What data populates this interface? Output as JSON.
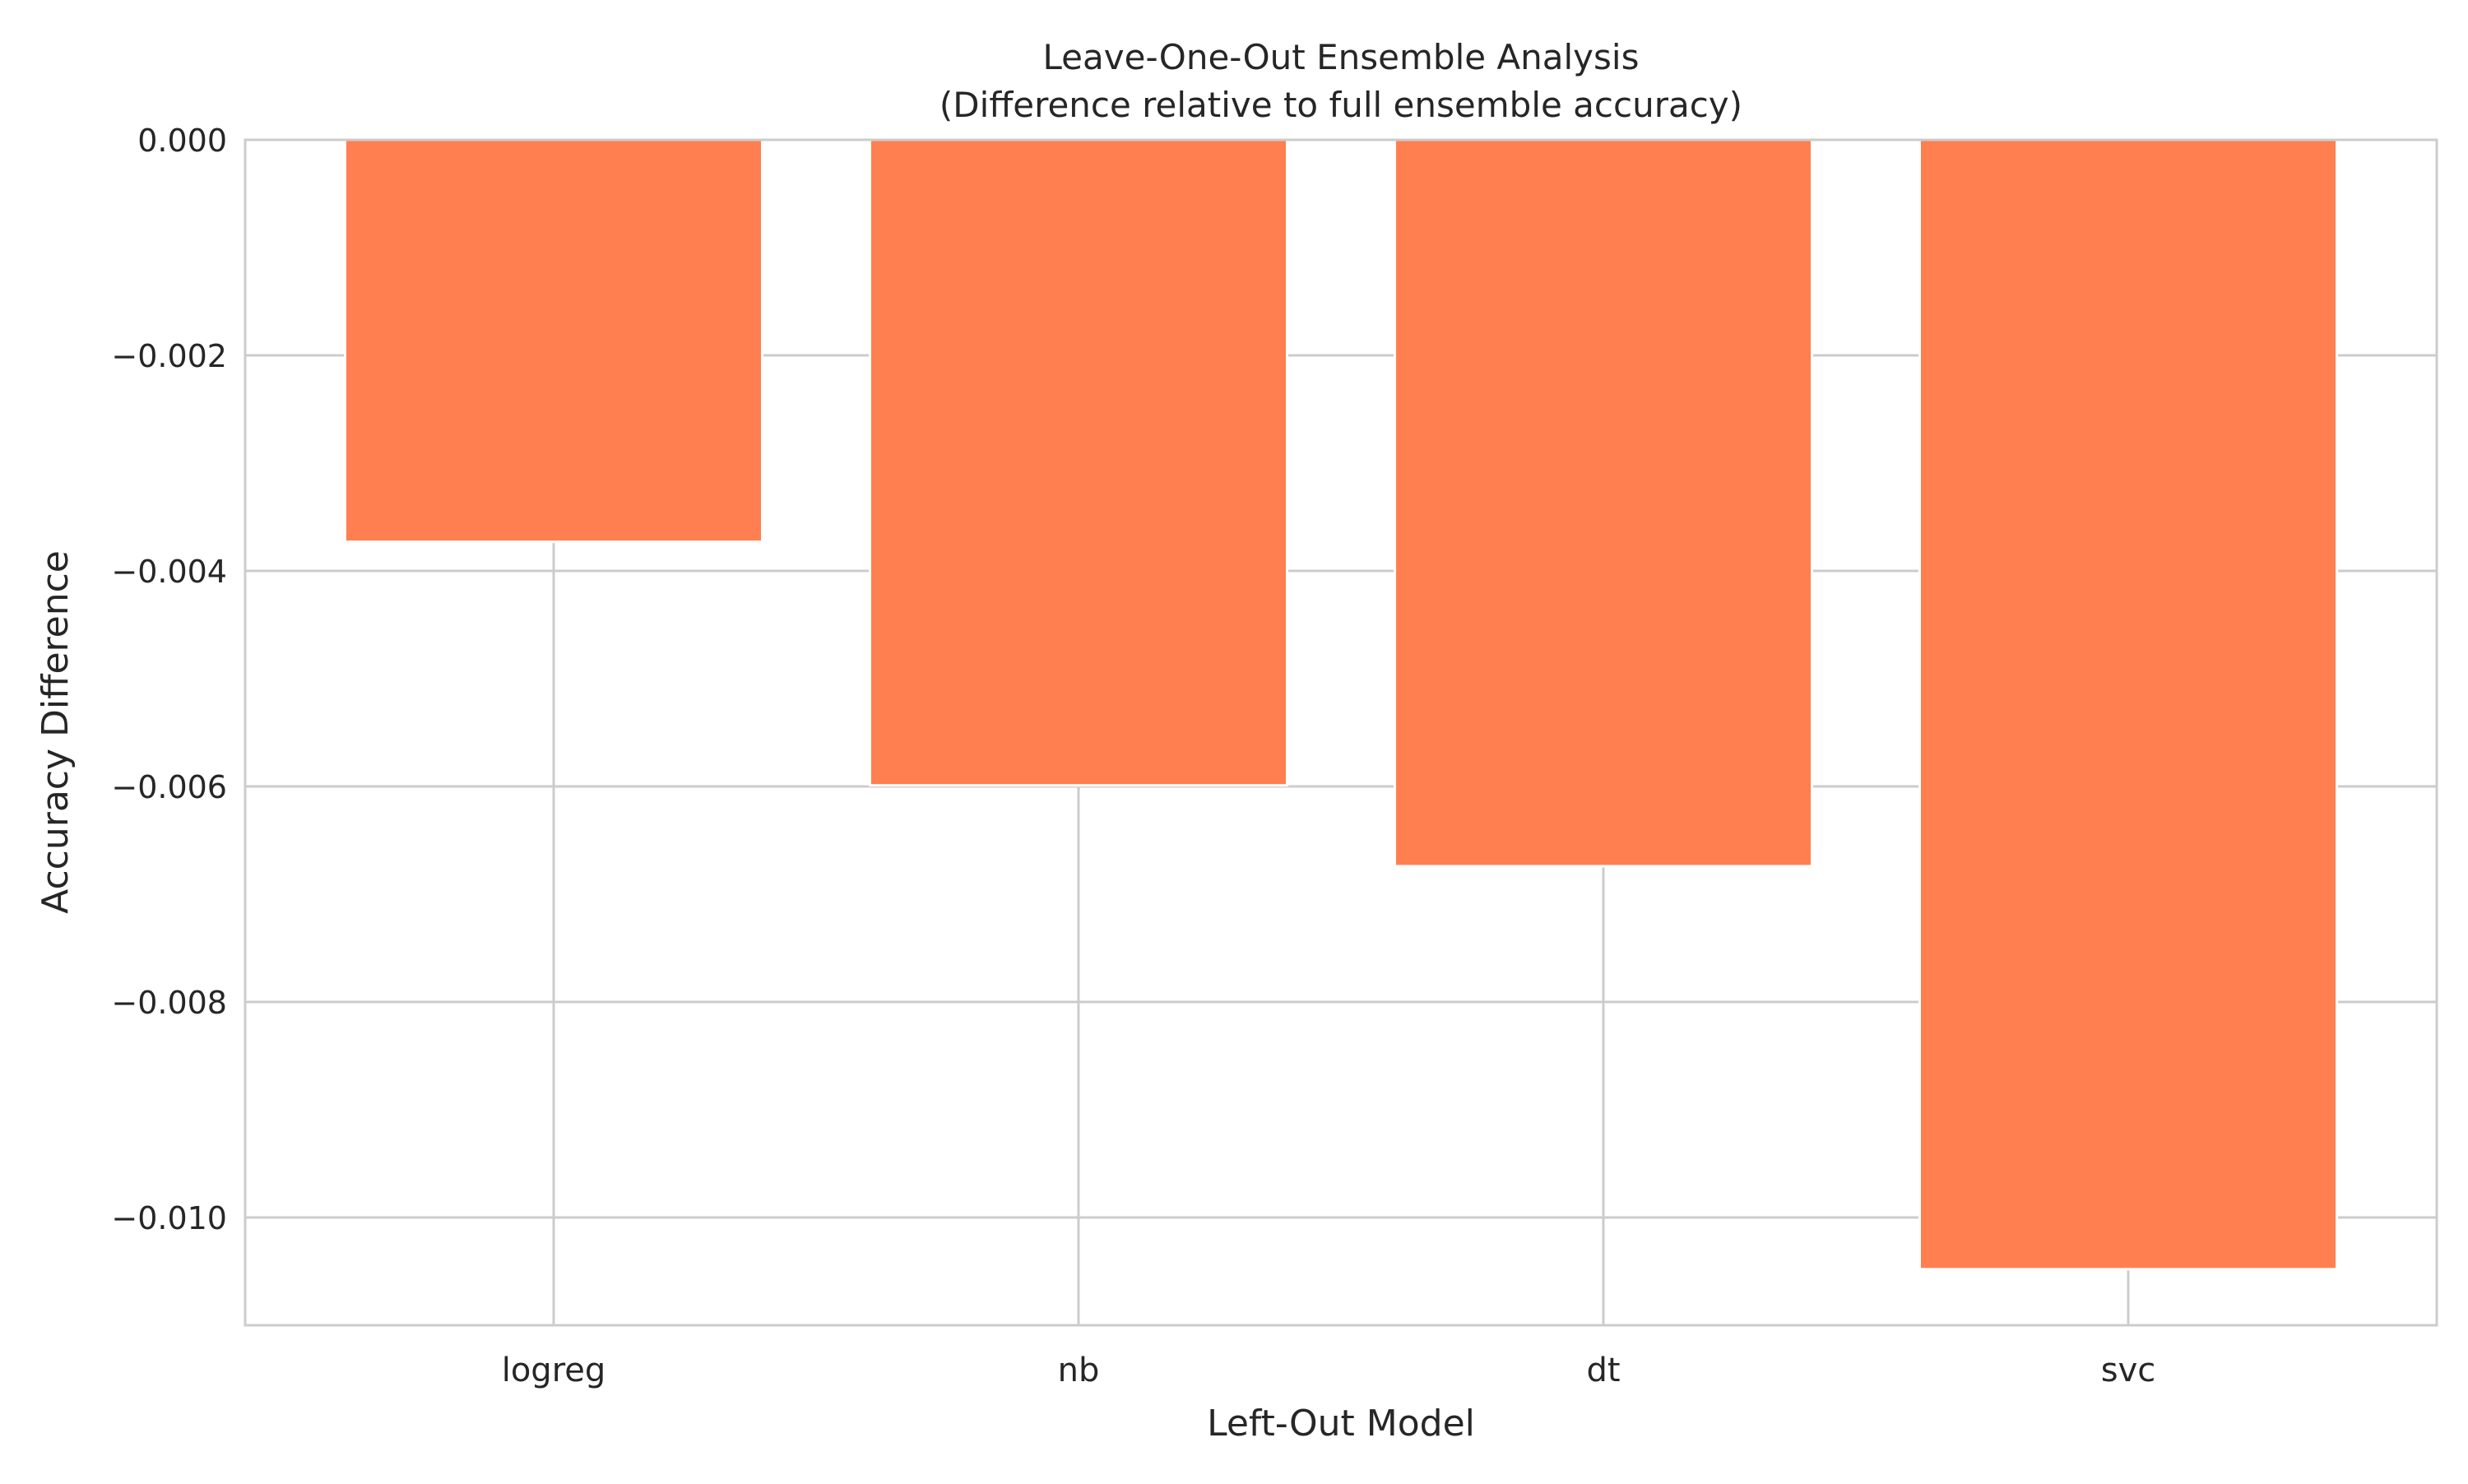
{
  "chart_data": {
    "type": "bar",
    "title": "Leave-One-Out Ensemble Analysis",
    "subtitle": "(Difference relative to full ensemble accuracy)",
    "xlabel": "Left-Out Model",
    "ylabel": "Accuracy Difference",
    "categories": [
      "logreg",
      "nb",
      "dt",
      "svc"
    ],
    "values": [
      -0.00373,
      -0.00599,
      -0.00674,
      -0.01048
    ],
    "ylim": [
      -0.011,
      0.0
    ],
    "yticks": [
      0.0,
      -0.002,
      -0.004,
      -0.006,
      -0.008,
      -0.01
    ],
    "ytick_labels": [
      "0.000",
      "−0.002",
      "−0.004",
      "−0.006",
      "−0.008",
      "−0.010"
    ],
    "grid": true,
    "bar_color": "#ff7f50",
    "grid_color": "#cccccc",
    "frame_color": "#cccccc"
  }
}
